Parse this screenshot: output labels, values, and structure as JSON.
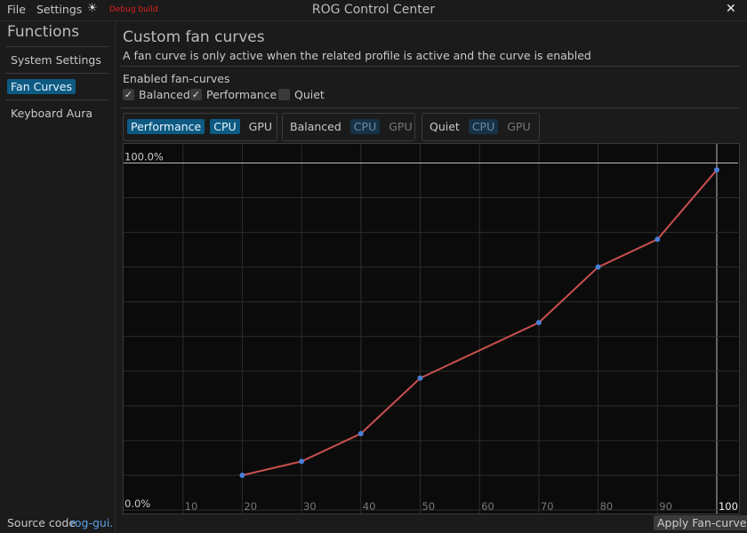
{
  "menu": [
    "File",
    "Settings"
  ],
  "debug_label": "Debug build",
  "window_title": "ROG Control Center",
  "sidebar": {
    "title": "Functions",
    "items": [
      "System Settings",
      "Fan Curves",
      "Keyboard Aura"
    ],
    "selected": 1
  },
  "header": {
    "title": "Custom fan curves",
    "subtitle": "A fan curve is only active when the related profile is active and the curve is enabled"
  },
  "enabled": {
    "label": "Enabled fan-curves",
    "options": [
      {
        "name": "Balanced",
        "checked": true
      },
      {
        "name": "Performance",
        "checked": true
      },
      {
        "name": "Quiet",
        "checked": false
      }
    ]
  },
  "profiles": [
    {
      "name": "Performance",
      "active": true,
      "fans": [
        "CPU",
        "GPU"
      ],
      "selected_fan": 0
    },
    {
      "name": "Balanced",
      "active": false,
      "fans": [
        "CPU",
        "GPU"
      ],
      "selected_fan": 0
    },
    {
      "name": "Quiet",
      "active": false,
      "fans": [
        "CPU",
        "GPU"
      ],
      "selected_fan": 0
    }
  ],
  "chart_data": {
    "type": "line",
    "x": [
      20,
      30,
      40,
      50,
      70,
      80,
      90,
      100
    ],
    "values": [
      10,
      14,
      22,
      38,
      54,
      70,
      78,
      98
    ],
    "color": "#c9504e",
    "point_color": "#4a7fd6",
    "xlim": [
      0,
      103.6
    ],
    "ylim": [
      -1,
      105.5
    ],
    "xticks": [
      10,
      20,
      30,
      40,
      50,
      60,
      70,
      80,
      90,
      100
    ],
    "yticks": [
      {
        "value": 0,
        "label": "0.0%"
      },
      {
        "value": 10,
        "label": null
      },
      {
        "value": 20,
        "label": null
      },
      {
        "value": 30,
        "label": null
      },
      {
        "value": 40,
        "label": null
      },
      {
        "value": 50,
        "label": null
      },
      {
        "value": 60,
        "label": null
      },
      {
        "value": 70,
        "label": null
      },
      {
        "value": 80,
        "label": null
      },
      {
        "value": 90,
        "label": null
      },
      {
        "value": 100,
        "label": "100.0%"
      }
    ],
    "grid": true
  },
  "footer": {
    "text": "Source code",
    "link": "rog-gui."
  },
  "apply_button": "Apply Fan-curve"
}
